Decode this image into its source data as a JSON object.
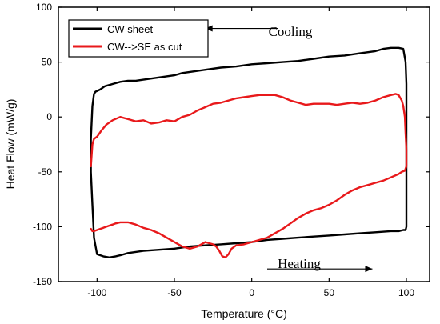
{
  "chart_data": {
    "type": "line",
    "xlabel": "Temperature (°C)",
    "ylabel": "Heat Flow (mW/g)",
    "xlim": [
      -125,
      115
    ],
    "ylim": [
      -150,
      100
    ],
    "xticks": [
      -100,
      -50,
      0,
      50,
      100
    ],
    "yticks": [
      -150,
      -100,
      -50,
      0,
      50,
      100
    ],
    "xtick_labels": [
      "-100",
      "-50",
      "0",
      "50",
      "100"
    ],
    "ytick_labels": [
      "-150",
      "-100",
      "-50",
      "0",
      "50",
      "100"
    ],
    "grid": false,
    "legend_position": "top-left",
    "series": [
      {
        "name": "CW sheet",
        "color": "#000000",
        "x": [
          -102,
          -101,
          -98,
          -95,
          -90,
          -85,
          -80,
          -75,
          -70,
          -65,
          -60,
          -55,
          -50,
          -45,
          -40,
          -30,
          -20,
          -10,
          0,
          10,
          20,
          30,
          40,
          50,
          60,
          70,
          80,
          85,
          90,
          95,
          98,
          99.5,
          100,
          100,
          99.5,
          98,
          95,
          90,
          80,
          70,
          60,
          50,
          40,
          30,
          20,
          10,
          0,
          -10,
          -20,
          -30,
          -40,
          -50,
          -60,
          -70,
          -80,
          -85,
          -88,
          -92,
          -96,
          -100,
          -102,
          -103,
          -104,
          -104,
          -103,
          -102
        ],
        "y": [
          21,
          23,
          25,
          28,
          30,
          32,
          33,
          33,
          34,
          35,
          36,
          37,
          38,
          40,
          41,
          43,
          45,
          46,
          48,
          49,
          50,
          51,
          53,
          55,
          56,
          58,
          60,
          62,
          63,
          63,
          62,
          50,
          30,
          -100,
          -103,
          -103,
          -104,
          -104,
          -105,
          -106,
          -107,
          -108,
          -109,
          -110,
          -111,
          -112,
          -114,
          -115,
          -116,
          -117,
          -118,
          -120,
          -121,
          -122,
          -124,
          -126,
          -127,
          -128,
          -127,
          -125,
          -110,
          -80,
          -50,
          -20,
          10,
          21
        ]
      },
      {
        "name": "CW-->SE as cut",
        "color": "#e8191b",
        "x": [
          -104,
          -103,
          -102,
          -100,
          -97,
          -94,
          -90,
          -85,
          -80,
          -75,
          -70,
          -65,
          -60,
          -55,
          -50,
          -45,
          -40,
          -35,
          -30,
          -25,
          -20,
          -15,
          -10,
          -5,
          0,
          5,
          10,
          15,
          20,
          25,
          30,
          35,
          40,
          45,
          50,
          55,
          60,
          65,
          70,
          75,
          80,
          85,
          90,
          93,
          95,
          97,
          98,
          99,
          99.5,
          100,
          100,
          99,
          97,
          95,
          90,
          85,
          80,
          75,
          70,
          65,
          60,
          55,
          50,
          45,
          40,
          35,
          30,
          25,
          20,
          15,
          10,
          5,
          0,
          -5,
          -10,
          -13,
          -15,
          -17,
          -19,
          -21,
          -23,
          -25,
          -30,
          -35,
          -40,
          -45,
          -50,
          -55,
          -60,
          -65,
          -70,
          -75,
          -80,
          -85,
          -88,
          -90,
          -92,
          -94,
          -96,
          -98,
          -100,
          -102,
          -103,
          -104
        ],
        "y": [
          -45,
          -25,
          -20,
          -18,
          -12,
          -7,
          -3,
          0,
          -2,
          -4,
          -3,
          -6,
          -5,
          -3,
          -4,
          0,
          2,
          6,
          9,
          12,
          13,
          15,
          17,
          18,
          19,
          20,
          20,
          20,
          18,
          15,
          13,
          11,
          12,
          12,
          12,
          11,
          12,
          13,
          12,
          13,
          15,
          18,
          20,
          21,
          20,
          15,
          10,
          0,
          -15,
          -30,
          -45,
          -49,
          -50,
          -52,
          -55,
          -58,
          -60,
          -62,
          -64,
          -67,
          -71,
          -76,
          -80,
          -83,
          -85,
          -88,
          -92,
          -97,
          -102,
          -106,
          -110,
          -112,
          -114,
          -116,
          -117,
          -120,
          -125,
          -128,
          -127,
          -122,
          -118,
          -116,
          -114,
          -118,
          -120,
          -118,
          -114,
          -110,
          -106,
          -103,
          -101,
          -98,
          -96,
          -96,
          -97,
          -98,
          -99,
          -100,
          -101,
          -102,
          -103,
          -104,
          -104,
          -102
        ]
      }
    ],
    "annotations": [
      {
        "text": "Cooling",
        "x": 23,
        "y": 77,
        "arrow_from": 17,
        "arrow_to": -30
      },
      {
        "text": "Heating",
        "x": 35,
        "y": -137,
        "arrow_from": 10,
        "arrow_to": 78
      }
    ]
  }
}
